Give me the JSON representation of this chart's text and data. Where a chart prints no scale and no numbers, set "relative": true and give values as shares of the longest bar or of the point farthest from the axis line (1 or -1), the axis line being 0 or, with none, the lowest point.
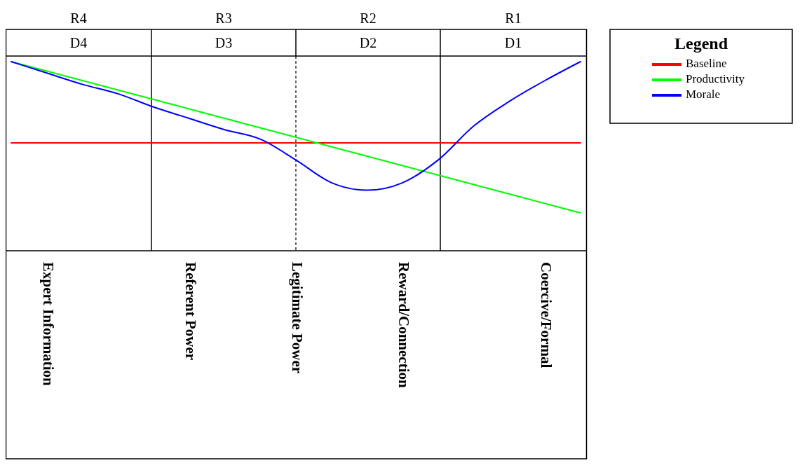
{
  "chart_data": {
    "type": "line",
    "relative": true,
    "legend": "top right",
    "legend_title": "Legend",
    "categories": [
      null,
      "Expert Information",
      null,
      null,
      null,
      "Referent Power",
      null,
      null,
      "Legitimate Power",
      null,
      null,
      "Reward/Connection",
      null,
      null,
      null,
      "Coercive/Formal",
      null
    ],
    "series": [
      {
        "name": "Baseline",
        "color": "#ff0000",
        "values": [
          0.57,
          0.57,
          0.57,
          0.57,
          0.57,
          0.57,
          0.57,
          0.57,
          0.57,
          0.57,
          0.57,
          0.57,
          0.57,
          0.57,
          0.57,
          0.57,
          0.57
        ]
      },
      {
        "name": "Productivity",
        "color": "#00ff00",
        "values": [
          1,
          0.95,
          0.9,
          0.85,
          0.8,
          0.75,
          0.7,
          0.65,
          0.6,
          0.55,
          0.5,
          0.45,
          0.4,
          0.35,
          0.3,
          0.25,
          0.2
        ]
      },
      {
        "name": "Morale",
        "color": "#0000ff",
        "values": [
          1,
          0.94,
          0.88,
          0.83,
          0.76,
          0.7,
          0.64,
          0.59,
          0.48,
          0.36,
          0.32,
          0.36,
          0.48,
          0.66,
          0.79,
          0.9,
          1
        ]
      }
    ],
    "annotations": [
      "R4",
      "R3",
      "R2",
      "R1",
      "D4",
      "D3",
      "D2",
      "D1"
    ]
  }
}
